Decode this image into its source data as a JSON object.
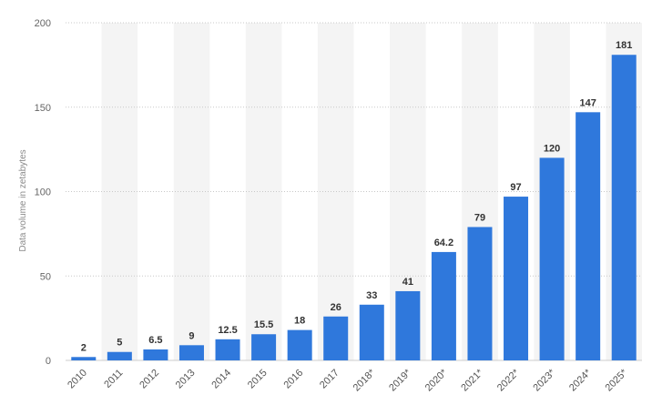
{
  "chart_data": {
    "type": "bar",
    "categories": [
      "2010",
      "2011",
      "2012",
      "2013",
      "2014",
      "2015",
      "2016",
      "2017",
      "2018*",
      "2019*",
      "2020*",
      "2021*",
      "2022*",
      "2023*",
      "2024*",
      "2025*"
    ],
    "values": [
      2,
      5,
      6.5,
      9,
      12.5,
      15.5,
      18,
      26,
      33,
      41,
      64.2,
      79,
      97,
      120,
      147,
      181
    ],
    "value_labels": [
      "2",
      "5",
      "6.5",
      "9",
      "12.5",
      "15.5",
      "18",
      "26",
      "33",
      "41",
      "64.2",
      "79",
      "97",
      "120",
      "147",
      "181"
    ],
    "title": "",
    "xlabel": "",
    "ylabel": "Data volume in zetabytes",
    "ylim": [
      0,
      200
    ],
    "yticks": [
      0,
      50,
      100,
      150,
      200
    ],
    "grid": true,
    "bar_color": "#2f78dc",
    "band_color": "#f4f4f4"
  }
}
